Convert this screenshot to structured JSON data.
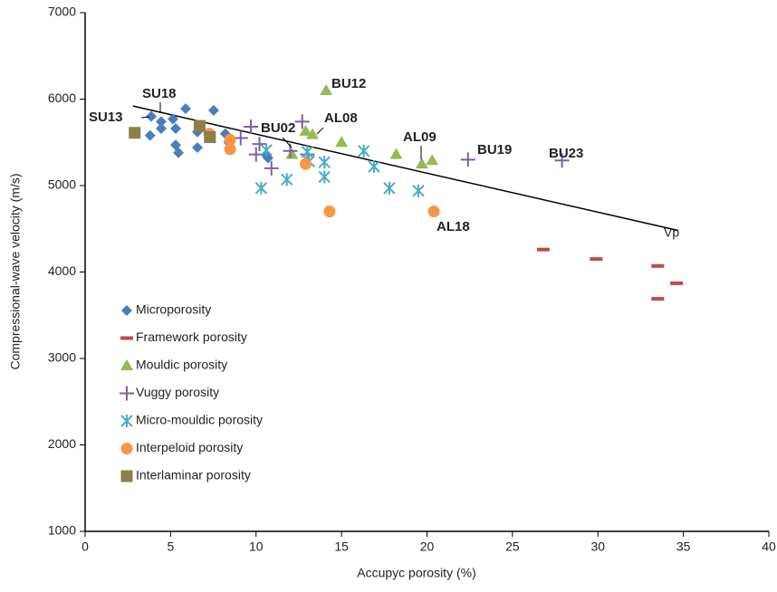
{
  "chart_data": {
    "type": "scatter",
    "x_label": "Accupyc porosity (%)",
    "y_label": "Compressional-wave velocity (m/s)",
    "xlim": [
      0,
      40
    ],
    "xticks": [
      0,
      5,
      10,
      15,
      20,
      25,
      30,
      35,
      40
    ],
    "ylim": [
      1000,
      7000
    ],
    "yticks": [
      1000,
      2000,
      3000,
      4000,
      5000,
      6000,
      7000
    ],
    "grid": false,
    "legend": "left",
    "series": [
      {
        "name": "Microporosity",
        "color": "#4a7ebb",
        "marker": "diamond",
        "x": [
          3.87,
          3.8,
          4.45,
          4.45,
          5.14,
          5.3,
          5.3,
          5.46,
          5.88,
          6.57,
          6.57,
          7.52,
          8.2,
          8.4,
          10.6,
          10.7
        ],
        "y": [
          5800,
          5580,
          5740,
          5660,
          5770,
          5660,
          5470,
          5380,
          5890,
          5620,
          5440,
          5870,
          5600,
          5500,
          5350,
          5320
        ]
      },
      {
        "name": "Framework porosity",
        "color": "#be4b48",
        "marker": "dash",
        "x": [
          26.8,
          29.9,
          33.5,
          34.6,
          33.5
        ],
        "y": [
          4260,
          4150,
          4070,
          3870,
          3690
        ]
      },
      {
        "name": "Mouldic porosity",
        "color": "#98b954",
        "marker": "triangle",
        "x": [
          14.1,
          12.9,
          13.3,
          15.0,
          12.1,
          18.2,
          19.7,
          20.3
        ],
        "y": [
          6100,
          5630,
          5590,
          5500,
          5360,
          5360,
          5250,
          5290
        ]
      },
      {
        "name": "Vuggy porosity",
        "color": "#7d60a0",
        "marker": "plus",
        "x": [
          9.7,
          9.1,
          10.0,
          10.2,
          10.9,
          12.0,
          12.7,
          13.0,
          22.4,
          27.9
        ],
        "y": [
          5680,
          5550,
          5360,
          5480,
          5200,
          5400,
          5740,
          5360,
          5300,
          5290
        ]
      },
      {
        "name": "Micro-mouldic porosity",
        "color": "#4bacc6",
        "marker": "asterisk",
        "x": [
          10.3,
          10.6,
          11.8,
          13.0,
          13.1,
          14.0,
          14.0,
          16.3,
          16.9,
          17.8,
          19.5
        ],
        "y": [
          4970,
          5410,
          5070,
          5390,
          5280,
          5270,
          5100,
          5400,
          5220,
          4970,
          4940
        ]
      },
      {
        "name": "Interpeloid porosity",
        "color": "#f79646",
        "marker": "circle",
        "x": [
          7.26,
          8.48,
          8.48,
          12.9,
          14.3,
          20.4
        ],
        "y": [
          5600,
          5530,
          5420,
          5250,
          4700,
          4700
        ]
      },
      {
        "name": "Interlaminar porosity",
        "color": "#8c7f4a",
        "marker": "square",
        "x": [
          2.9,
          6.7,
          7.3
        ],
        "y": [
          5610,
          5690,
          5560
        ]
      }
    ],
    "trendline": {
      "x": [
        2.8,
        34.7
      ],
      "y": [
        5920,
        4480
      ]
    },
    "annotations": [
      "SU13",
      "SU18",
      "BU12",
      "AL08",
      "BU02",
      "AL09",
      "BU19",
      "BU23",
      "AL18",
      "Vp"
    ]
  }
}
